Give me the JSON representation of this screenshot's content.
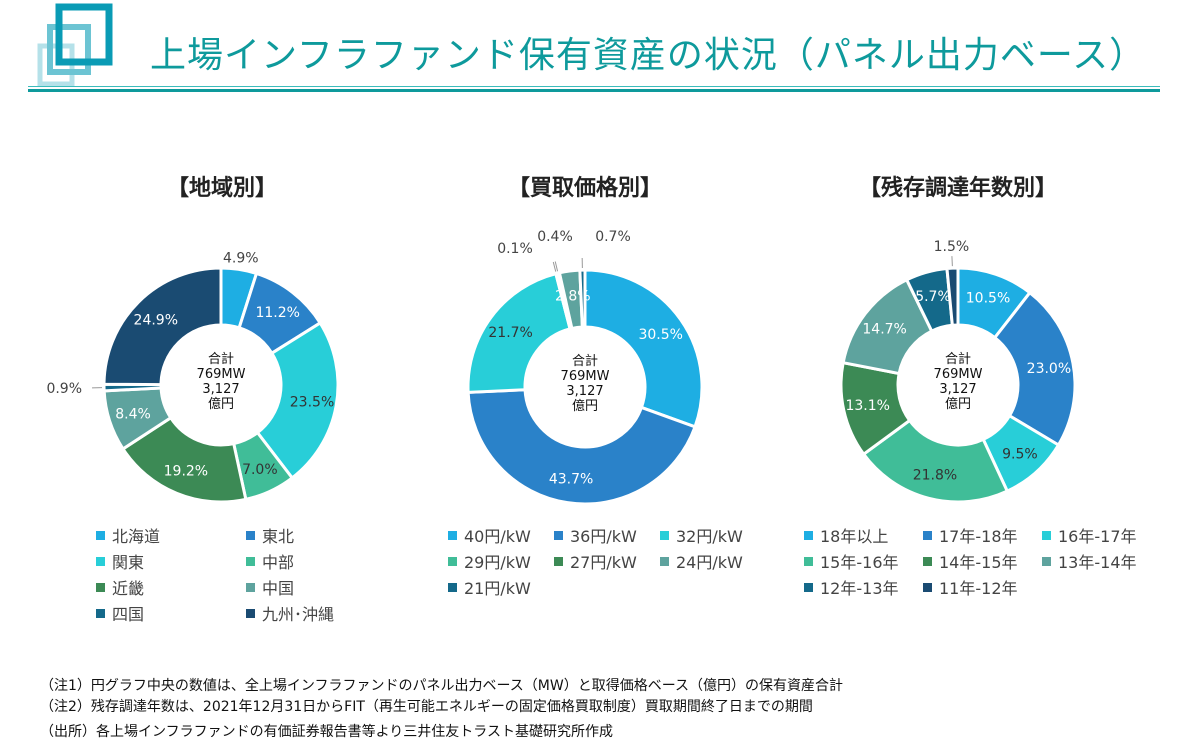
{
  "title": "上場インフラファンド保有資産の状況（パネル出力ベース）",
  "center": {
    "l1": "合計",
    "l2": "769MW",
    "l3": "3,127",
    "l4": "億円"
  },
  "chart_data": [
    {
      "type": "pie",
      "title": "【地域別】",
      "donut": true,
      "categories": [
        "北海道",
        "東北",
        "関東",
        "中部",
        "近畿",
        "中国",
        "四国",
        "九州･沖縄"
      ],
      "values": [
        4.9,
        11.2,
        23.5,
        7.0,
        19.2,
        8.4,
        0.9,
        24.9
      ],
      "labels": [
        "4.9%",
        "11.2%",
        "23.5%",
        "7.0%",
        "19.2%",
        "8.4%",
        "0.9%",
        "24.9%"
      ],
      "colors": [
        "#1eaee3",
        "#2a82c9",
        "#28ced8",
        "#40bd98",
        "#3c8a55",
        "#5ea39e",
        "#14698a",
        "#1a4b72"
      ],
      "legend": "bottom"
    },
    {
      "type": "pie",
      "title": "【買取価格別】",
      "donut": true,
      "categories": [
        "40円/kW",
        "36円/kW",
        "32円/kW",
        "29円/kW",
        "27円/kW",
        "24円/kW",
        "21円/kW"
      ],
      "values": [
        30.5,
        43.7,
        21.7,
        0.1,
        0.4,
        2.8,
        0.7
      ],
      "labels": [
        "30.5%",
        "43.7%",
        "21.7%",
        "0.1%",
        "0.4%",
        "2.8%",
        "0.7%"
      ],
      "colors": [
        "#1eaee3",
        "#2a82c9",
        "#28ced8",
        "#40bd98",
        "#3c8a55",
        "#5ea39e",
        "#14698a"
      ],
      "legend": "bottom"
    },
    {
      "type": "pie",
      "title": "【残存調達年数別】",
      "donut": true,
      "categories": [
        "18年以上",
        "17年-18年",
        "16年-17年",
        "15年-16年",
        "14年-15年",
        "13年-14年",
        "12年-13年",
        "11年-12年"
      ],
      "values": [
        10.5,
        23.0,
        9.5,
        21.8,
        13.1,
        14.7,
        5.7,
        1.5
      ],
      "labels": [
        "10.5%",
        "23.0%",
        "9.5%",
        "21.8%",
        "13.1%",
        "14.7%",
        "5.7%",
        "1.5%"
      ],
      "colors": [
        "#1eaee3",
        "#2a82c9",
        "#28ced8",
        "#40bd98",
        "#3c8a55",
        "#5ea39e",
        "#14698a",
        "#1a4b72"
      ],
      "legend": "bottom"
    }
  ],
  "notes": [
    "（注1）円グラフ中央の数値は、全上場インフラファンドのパネル出力ベース（MW）と取得価格ベース（億円）の保有資産合計",
    "（注2）残存調達年数は、2021年12月31日からFIT（再生可能エネルギーの固定価格買取制度）買取期間終了日までの期間",
    "（出所）各上場インフラファンドの有価証券報告書等より三井住友トラスト基礎研究所作成"
  ]
}
